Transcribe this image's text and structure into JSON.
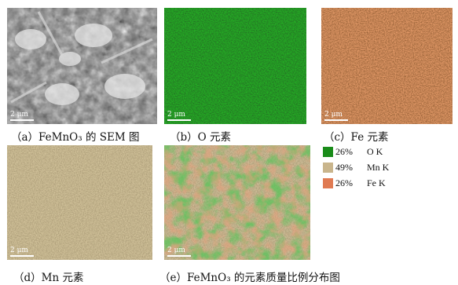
{
  "figure": {
    "scale_bar_label": "2 μm",
    "panels": [
      {
        "id": "a",
        "caption": "（a）FeMnO₃ 的 SEM 图"
      },
      {
        "id": "b",
        "caption": "（b）O 元素"
      },
      {
        "id": "c",
        "caption": "（c）Fe 元素"
      },
      {
        "id": "d",
        "caption": "（d）Mn 元素"
      },
      {
        "id": "e",
        "caption": "（e）FeMnO₃ 的元素质量比例分布图"
      }
    ],
    "legend": [
      {
        "percent": "26%",
        "label": "O K",
        "color": "#1a8c1a"
      },
      {
        "percent": "49%",
        "label": "Mn K",
        "color": "#c9b58c"
      },
      {
        "percent": "26%",
        "label": "Fe K",
        "color": "#e07a52"
      }
    ]
  }
}
